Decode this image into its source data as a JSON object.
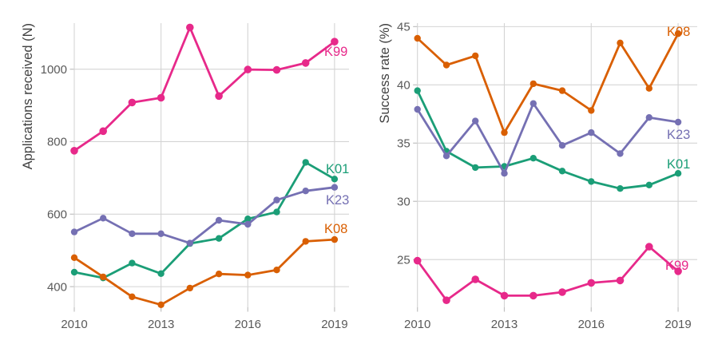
{
  "figure": {
    "background": "#ffffff",
    "grid_color": "#d4d4d4",
    "tick_color": "#c0c0c0",
    "text_color": "#595959",
    "title_color": "#3f3f3f"
  },
  "chart_data": [
    {
      "type": "line",
      "title": "",
      "xlabel": "",
      "ylabel": "Applications received (N)",
      "x": [
        2010,
        2011,
        2012,
        2013,
        2014,
        2015,
        2016,
        2017,
        2018,
        2019
      ],
      "xticks": [
        2010,
        2013,
        2016,
        2019
      ],
      "yticks": [
        400,
        600,
        800,
        1000
      ],
      "xlim": [
        2010,
        2019.5
      ],
      "ylim": [
        343,
        1127
      ],
      "grid": true,
      "legend": "inline-end-labels",
      "series": [
        {
          "name": "K01",
          "color": "#1b9e77",
          "values": [
            440,
            424,
            465,
            436,
            519,
            533,
            587,
            606,
            743,
            697
          ]
        },
        {
          "name": "K23",
          "color": "#7570b3",
          "values": [
            551,
            589,
            546,
            546,
            520,
            583,
            572,
            639,
            664,
            674
          ]
        },
        {
          "name": "K08",
          "color": "#d95f02",
          "values": [
            480,
            427,
            372,
            350,
            396,
            435,
            432,
            446,
            525,
            530
          ]
        },
        {
          "name": "K99",
          "color": "#e7298a",
          "values": [
            775,
            829,
            908,
            921,
            1115,
            926,
            999,
            998,
            1017,
            1076
          ]
        }
      ]
    },
    {
      "type": "line",
      "title": "",
      "xlabel": "",
      "ylabel": "Success rate (%)",
      "x": [
        2010,
        2011,
        2012,
        2013,
        2014,
        2015,
        2016,
        2017,
        2018,
        2019
      ],
      "xticks": [
        2010,
        2013,
        2016,
        2019
      ],
      "yticks": [
        25,
        30,
        35,
        40,
        45
      ],
      "xlim": [
        2010,
        2019.66
      ],
      "ylim": [
        20.9,
        45.3
      ],
      "grid": true,
      "legend": "inline-end-labels",
      "series": [
        {
          "name": "K01",
          "color": "#1b9e77",
          "values": [
            39.5,
            34.3,
            32.9,
            33.0,
            33.7,
            32.6,
            31.7,
            31.1,
            31.4,
            32.4
          ]
        },
        {
          "name": "K23",
          "color": "#7570b3",
          "values": [
            37.9,
            33.9,
            36.9,
            32.4,
            38.4,
            34.8,
            35.9,
            34.1,
            37.2,
            36.8
          ]
        },
        {
          "name": "K08",
          "color": "#d95f02",
          "values": [
            44.0,
            41.7,
            42.5,
            35.9,
            40.1,
            39.5,
            37.8,
            43.6,
            39.7,
            44.4
          ]
        },
        {
          "name": "K99",
          "color": "#e7298a",
          "values": [
            24.9,
            21.5,
            23.3,
            21.9,
            21.9,
            22.2,
            23.0,
            23.2,
            26.1,
            24.0
          ]
        }
      ]
    }
  ]
}
